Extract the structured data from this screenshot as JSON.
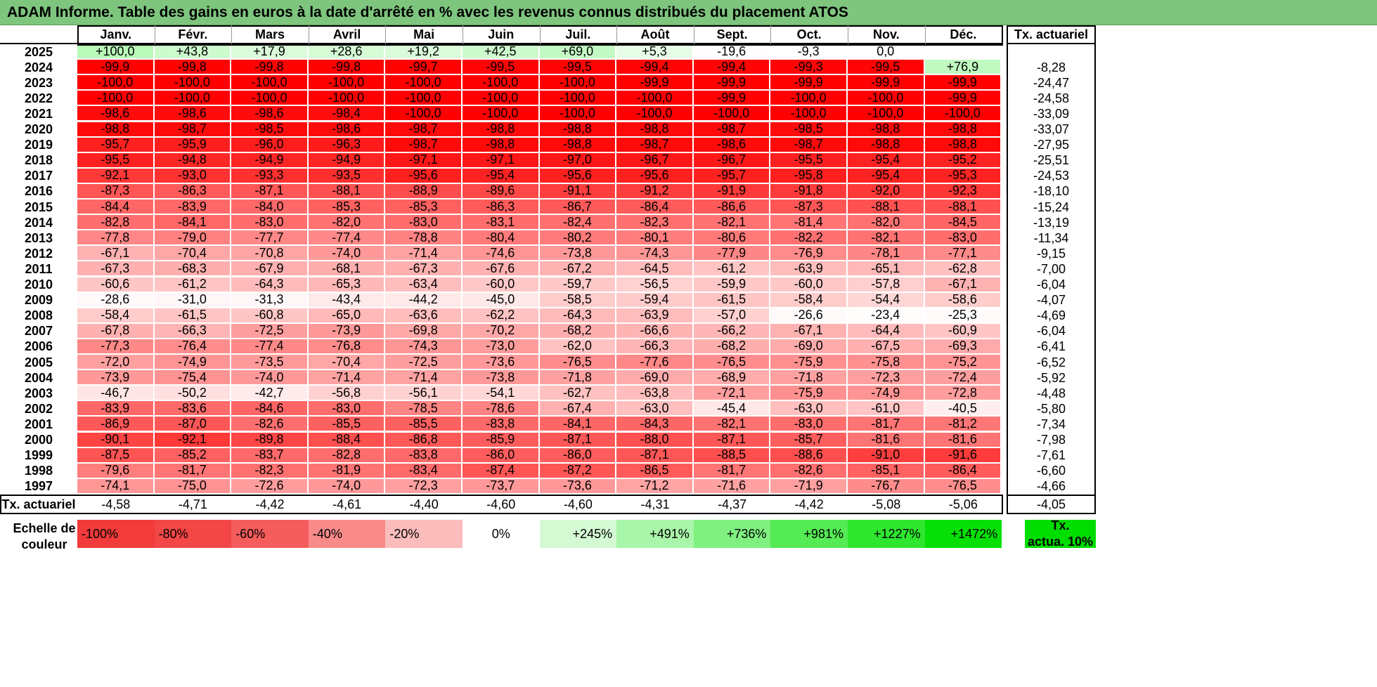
{
  "title": "ADAM Informe. Table des gains en euros à la date d'arrêté en % avec les revenus connus distribués du placement ATOS",
  "chart_data": {
    "type": "table",
    "months": [
      "Janv.",
      "Févr.",
      "Mars",
      "Avril",
      "Mai",
      "Juin",
      "Juil.",
      "Août",
      "Sept.",
      "Oct.",
      "Nov.",
      "Déc."
    ],
    "rate_header": "Tx. actuariel",
    "rows": [
      {
        "year": "2025",
        "values": [
          "+100,0",
          "+43,8",
          "+17,9",
          "+28,6",
          "+19,2",
          "+42,5",
          "+69,0",
          "+5,3",
          "-19,6",
          "-9,3",
          "0,0",
          ""
        ],
        "rate": ""
      },
      {
        "year": "2024",
        "values": [
          "-99,9",
          "-99,8",
          "-99,8",
          "-99,8",
          "-99,7",
          "-99,5",
          "-99,5",
          "-99,4",
          "-99,4",
          "-99,3",
          "-99,5",
          "+76,9"
        ],
        "rate": "-8,28"
      },
      {
        "year": "2023",
        "values": [
          "-100,0",
          "-100,0",
          "-100,0",
          "-100,0",
          "-100,0",
          "-100,0",
          "-100,0",
          "-99,9",
          "-99,9",
          "-99,9",
          "-99,9",
          "-99,9"
        ],
        "rate": "-24,47"
      },
      {
        "year": "2022",
        "values": [
          "-100,0",
          "-100,0",
          "-100,0",
          "-100,0",
          "-100,0",
          "-100,0",
          "-100,0",
          "-100,0",
          "-99,9",
          "-100,0",
          "-100,0",
          "-99,9"
        ],
        "rate": "-24,58"
      },
      {
        "year": "2021",
        "values": [
          "-98,6",
          "-98,6",
          "-98,6",
          "-98,4",
          "-100,0",
          "-100,0",
          "-100,0",
          "-100,0",
          "-100,0",
          "-100,0",
          "-100,0",
          "-100,0"
        ],
        "rate": "-33,09"
      },
      {
        "year": "2020",
        "values": [
          "-98,8",
          "-98,7",
          "-98,5",
          "-98,6",
          "-98,7",
          "-98,8",
          "-98,8",
          "-98,8",
          "-98,7",
          "-98,5",
          "-98,8",
          "-98,8"
        ],
        "rate": "-33,07"
      },
      {
        "year": "2019",
        "values": [
          "-95,7",
          "-95,9",
          "-96,0",
          "-96,3",
          "-98,7",
          "-98,8",
          "-98,8",
          "-98,7",
          "-98,6",
          "-98,7",
          "-98,8",
          "-98,8"
        ],
        "rate": "-27,95"
      },
      {
        "year": "2018",
        "values": [
          "-95,5",
          "-94,8",
          "-94,9",
          "-94,9",
          "-97,1",
          "-97,1",
          "-97,0",
          "-96,7",
          "-96,7",
          "-95,5",
          "-95,4",
          "-95,2"
        ],
        "rate": "-25,51"
      },
      {
        "year": "2017",
        "values": [
          "-92,1",
          "-93,0",
          "-93,3",
          "-93,5",
          "-95,6",
          "-95,4",
          "-95,6",
          "-95,6",
          "-95,7",
          "-95,8",
          "-95,4",
          "-95,3"
        ],
        "rate": "-24,53"
      },
      {
        "year": "2016",
        "values": [
          "-87,3",
          "-86,3",
          "-87,1",
          "-88,1",
          "-88,9",
          "-89,6",
          "-91,1",
          "-91,2",
          "-91,9",
          "-91,8",
          "-92,0",
          "-92,3"
        ],
        "rate": "-18,10"
      },
      {
        "year": "2015",
        "values": [
          "-84,4",
          "-83,9",
          "-84,0",
          "-85,3",
          "-85,3",
          "-86,3",
          "-86,7",
          "-86,4",
          "-86,6",
          "-87,3",
          "-88,1",
          "-88,1"
        ],
        "rate": "-15,24"
      },
      {
        "year": "2014",
        "values": [
          "-82,8",
          "-84,1",
          "-83,0",
          "-82,0",
          "-83,0",
          "-83,1",
          "-82,4",
          "-82,3",
          "-82,1",
          "-81,4",
          "-82,0",
          "-84,5"
        ],
        "rate": "-13,19"
      },
      {
        "year": "2013",
        "values": [
          "-77,8",
          "-79,0",
          "-77,7",
          "-77,4",
          "-78,8",
          "-80,4",
          "-80,2",
          "-80,1",
          "-80,6",
          "-82,2",
          "-82,1",
          "-83,0"
        ],
        "rate": "-11,34"
      },
      {
        "year": "2012",
        "values": [
          "-67,1",
          "-70,4",
          "-70,8",
          "-74,0",
          "-71,4",
          "-74,6",
          "-73,8",
          "-74,3",
          "-77,9",
          "-76,9",
          "-78,1",
          "-77,1"
        ],
        "rate": "-9,15"
      },
      {
        "year": "2011",
        "values": [
          "-67,3",
          "-68,3",
          "-67,9",
          "-68,1",
          "-67,3",
          "-67,6",
          "-67,2",
          "-64,5",
          "-61,2",
          "-63,9",
          "-65,1",
          "-62,8"
        ],
        "rate": "-7,00"
      },
      {
        "year": "2010",
        "values": [
          "-60,6",
          "-61,2",
          "-64,3",
          "-65,3",
          "-63,4",
          "-60,0",
          "-59,7",
          "-56,5",
          "-59,9",
          "-60,0",
          "-57,8",
          "-67,1"
        ],
        "rate": "-6,04"
      },
      {
        "year": "2009",
        "values": [
          "-28,6",
          "-31,0",
          "-31,3",
          "-43,4",
          "-44,2",
          "-45,0",
          "-58,5",
          "-59,4",
          "-61,5",
          "-58,4",
          "-54,4",
          "-58,6"
        ],
        "rate": "-4,07"
      },
      {
        "year": "2008",
        "values": [
          "-58,4",
          "-61,5",
          "-60,8",
          "-65,0",
          "-63,6",
          "-62,2",
          "-64,3",
          "-63,9",
          "-57,0",
          "-26,6",
          "-23,4",
          "-25,3"
        ],
        "rate": "-4,69"
      },
      {
        "year": "2007",
        "values": [
          "-67,8",
          "-66,3",
          "-72,5",
          "-73,9",
          "-69,8",
          "-70,2",
          "-68,2",
          "-66,6",
          "-66,2",
          "-67,1",
          "-64,4",
          "-60,9"
        ],
        "rate": "-6,04"
      },
      {
        "year": "2006",
        "values": [
          "-77,3",
          "-76,4",
          "-77,4",
          "-76,8",
          "-74,3",
          "-73,0",
          "-62,0",
          "-66,3",
          "-68,2",
          "-69,0",
          "-67,5",
          "-69,3"
        ],
        "rate": "-6,41"
      },
      {
        "year": "2005",
        "values": [
          "-72,0",
          "-74,9",
          "-73,5",
          "-70,4",
          "-72,5",
          "-73,6",
          "-76,5",
          "-77,6",
          "-76,5",
          "-75,9",
          "-75,8",
          "-75,2"
        ],
        "rate": "-6,52"
      },
      {
        "year": "2004",
        "values": [
          "-73,9",
          "-75,4",
          "-74,0",
          "-71,4",
          "-71,4",
          "-73,8",
          "-71,8",
          "-69,0",
          "-68,9",
          "-71,8",
          "-72,3",
          "-72,4"
        ],
        "rate": "-5,92"
      },
      {
        "year": "2003",
        "values": [
          "-46,7",
          "-50,2",
          "-42,7",
          "-56,8",
          "-56,1",
          "-54,1",
          "-62,7",
          "-63,8",
          "-72,1",
          "-75,9",
          "-74,9",
          "-72,8"
        ],
        "rate": "-4,48"
      },
      {
        "year": "2002",
        "values": [
          "-83,9",
          "-83,6",
          "-84,6",
          "-83,0",
          "-78,5",
          "-78,6",
          "-67,4",
          "-63,0",
          "-45,4",
          "-63,0",
          "-61,0",
          "-40,5"
        ],
        "rate": "-5,80"
      },
      {
        "year": "2001",
        "values": [
          "-86,9",
          "-87,0",
          "-82,6",
          "-85,5",
          "-85,5",
          "-83,8",
          "-84,1",
          "-84,3",
          "-82,1",
          "-83,0",
          "-81,7",
          "-81,2"
        ],
        "rate": "-7,34"
      },
      {
        "year": "2000",
        "values": [
          "-90,1",
          "-92,1",
          "-89,8",
          "-88,4",
          "-86,8",
          "-85,9",
          "-87,1",
          "-88,0",
          "-87,1",
          "-85,7",
          "-81,6",
          "-81,6"
        ],
        "rate": "-7,98"
      },
      {
        "year": "1999",
        "values": [
          "-87,5",
          "-85,2",
          "-83,7",
          "-82,8",
          "-83,8",
          "-86,0",
          "-86,0",
          "-87,1",
          "-88,5",
          "-88,6",
          "-91,0",
          "-91,6"
        ],
        "rate": "-7,61"
      },
      {
        "year": "1998",
        "values": [
          "-79,6",
          "-81,7",
          "-82,3",
          "-81,9",
          "-83,4",
          "-87,4",
          "-87,2",
          "-86,5",
          "-81,7",
          "-82,6",
          "-85,1",
          "-86,4"
        ],
        "rate": "-6,60"
      },
      {
        "year": "1997",
        "values": [
          "-74,1",
          "-75,0",
          "-72,6",
          "-74,0",
          "-72,3",
          "-73,7",
          "-73,6",
          "-71,2",
          "-71,6",
          "-71,9",
          "-76,7",
          "-76,5"
        ],
        "rate": "-4,66"
      }
    ],
    "footer": {
      "label": "Tx. actuariel",
      "values": [
        "-4,58",
        "-4,71",
        "-4,42",
        "-4,61",
        "-4,40",
        "-4,60",
        "-4,60",
        "-4,31",
        "-4,37",
        "-4,42",
        "-5,08",
        "-5,06"
      ],
      "rate": "-4,05"
    },
    "color_scale": {
      "label_line1": "Echelle de",
      "label_line2": "couleur",
      "steps": [
        {
          "label": "-100%",
          "color": "#f23b3b",
          "align": "left"
        },
        {
          "label": "-80%",
          "color": "#f34646",
          "align": "left"
        },
        {
          "label": "-60%",
          "color": "#f55c5c",
          "align": "left"
        },
        {
          "label": "-40%",
          "color": "#f88a8a",
          "align": "left"
        },
        {
          "label": "-20%",
          "color": "#fbbcbc",
          "align": "left"
        },
        {
          "label": "0%",
          "color": "#ffffff",
          "align": "center"
        },
        {
          "label": "+245%",
          "color": "#d4fad4",
          "align": "right"
        },
        {
          "label": "+491%",
          "color": "#a9f5a9",
          "align": "right"
        },
        {
          "label": "+736%",
          "color": "#80f080",
          "align": "right"
        },
        {
          "label": "+981%",
          "color": "#55eb55",
          "align": "right"
        },
        {
          "label": "+1227%",
          "color": "#2ee62e",
          "align": "right"
        },
        {
          "label": "+1472%",
          "color": "#06e006",
          "align": "right"
        }
      ],
      "actua_line1": "Tx.",
      "actua_line2": "actua. 10%",
      "actua_color": "#00dd00"
    },
    "colors": {
      "title_bg": "#7ec57e",
      "red_full": "#ff0000",
      "green_full": "#00dd00"
    }
  }
}
